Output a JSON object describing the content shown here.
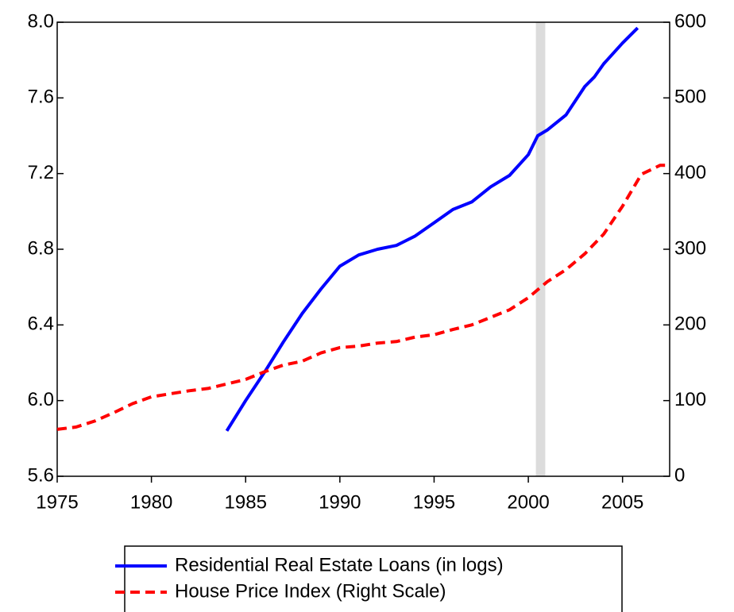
{
  "chart_data": {
    "type": "line",
    "xlim": [
      1975,
      2007.5
    ],
    "xticks": [
      1975,
      1980,
      1985,
      1990,
      1995,
      2000,
      2005
    ],
    "ylim": [
      5.6,
      8.0
    ],
    "yticks": [
      {
        "value": 5.6,
        "label": "5.6"
      },
      {
        "value": 6.0,
        "label": "6.0"
      },
      {
        "value": 6.4,
        "label": "6.4"
      },
      {
        "value": 6.8,
        "label": "6.8"
      },
      {
        "value": 7.2,
        "label": "7.2"
      },
      {
        "value": 7.6,
        "label": "7.6"
      },
      {
        "value": 8.0,
        "label": "8.0"
      }
    ],
    "y2lim": [
      0,
      600
    ],
    "y2ticks": [
      0,
      100,
      200,
      300,
      400,
      500,
      600
    ],
    "shade": [
      2000.4,
      2000.9
    ],
    "shade_color": "#dcdcdc",
    "series": [
      {
        "name": "Residential Real Estate Loans (in logs)",
        "color": "#0000ff",
        "dash": false,
        "x": [
          1984,
          1985,
          1986,
          1987,
          1988,
          1989,
          1990,
          1991,
          1992,
          1993,
          1994,
          1995,
          1996,
          1997,
          1998,
          1999,
          2000,
          2000.5,
          2001,
          2002,
          2003,
          2003.5,
          2004,
          2005,
          2005.8
        ],
        "values": [
          5.84,
          6.0,
          6.15,
          6.31,
          6.46,
          6.59,
          6.71,
          6.77,
          6.8,
          6.82,
          6.87,
          6.94,
          7.01,
          7.05,
          7.13,
          7.19,
          7.3,
          7.4,
          7.43,
          7.51,
          7.66,
          7.71,
          7.78,
          7.89,
          7.97
        ]
      },
      {
        "name": "House Price Index (Right Scale)",
        "color": "#ff0000",
        "dash": true,
        "axis": "y2",
        "x": [
          1975,
          1976,
          1977,
          1978,
          1979,
          1980,
          1981,
          1982,
          1983,
          1984,
          1985,
          1986,
          1987,
          1988,
          1989,
          1990,
          1991,
          1992,
          1993,
          1994,
          1995,
          1996,
          1997,
          1998,
          1999,
          2000,
          2001,
          2002,
          2003,
          2004,
          2005,
          2006,
          2007,
          2007.5
        ],
        "values": [
          62,
          65,
          73,
          84,
          96,
          105,
          109,
          113,
          116,
          122,
          128,
          138,
          147,
          152,
          163,
          170,
          172,
          176,
          178,
          184,
          187,
          194,
          200,
          210,
          220,
          236,
          257,
          273,
          294,
          320,
          357,
          399,
          411,
          411
        ]
      }
    ]
  }
}
